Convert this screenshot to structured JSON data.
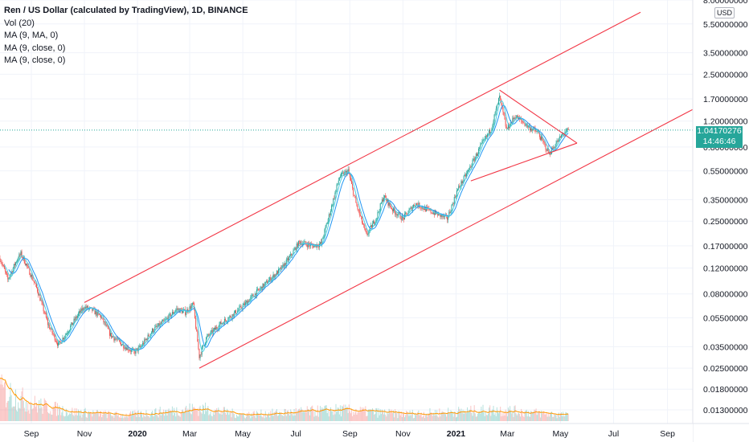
{
  "header": {
    "title": "Ren / US Dollar (calculated by TradingView), 1D, BINANCE",
    "indicators": [
      "Vol (20)",
      "MA (9, MA, 0)",
      "MA (9, close, 0)",
      "MA (9, close, 0)"
    ]
  },
  "price_axis": {
    "currency": "USD",
    "last_price": "1.04170276",
    "countdown": "14:46:46"
  },
  "colors": {
    "up": "#26a69a",
    "down": "#ef5350",
    "ma_blue": "#2196f3",
    "ma_teal": "#4dd0e1",
    "vol_ma": "#ff9800",
    "trendline": "#f23645",
    "last_price_line": "#26a69a"
  },
  "chart_data": {
    "type": "candlestick",
    "scale": "log",
    "ylim": [
      0.0105,
      8.0
    ],
    "xlim": [
      "2019-07-27",
      "2021-09-30"
    ],
    "y_ticks": [
      {
        "value": 8.0,
        "label": "8.00000000"
      },
      {
        "value": 5.5,
        "label": "5.50000000"
      },
      {
        "value": 3.5,
        "label": "3.50000000"
      },
      {
        "value": 2.5,
        "label": "2.50000000"
      },
      {
        "value": 1.7,
        "label": "1.70000000"
      },
      {
        "value": 1.2,
        "label": "1.20000000"
      },
      {
        "value": 0.8,
        "label": "0.80000000"
      },
      {
        "value": 0.55,
        "label": "0.55000000"
      },
      {
        "value": 0.35,
        "label": "0.35000000"
      },
      {
        "value": 0.25,
        "label": "0.25000000"
      },
      {
        "value": 0.17,
        "label": "0.17000000"
      },
      {
        "value": 0.12,
        "label": "0.12000000"
      },
      {
        "value": 0.08,
        "label": "0.08000000"
      },
      {
        "value": 0.055,
        "label": "0.05500000"
      },
      {
        "value": 0.035,
        "label": "0.03500000"
      },
      {
        "value": 0.025,
        "label": "0.02500000"
      },
      {
        "value": 0.018,
        "label": "0.01800000"
      },
      {
        "value": 0.013,
        "label": "0.01300000"
      }
    ],
    "x_ticks": [
      {
        "date": "2019-09-01",
        "label": "Sep",
        "bold": false
      },
      {
        "date": "2019-11-01",
        "label": "Nov",
        "bold": false
      },
      {
        "date": "2020-01-01",
        "label": "2020",
        "bold": true
      },
      {
        "date": "2020-03-01",
        "label": "Mar",
        "bold": false
      },
      {
        "date": "2020-05-01",
        "label": "May",
        "bold": false
      },
      {
        "date": "2020-07-01",
        "label": "Jul",
        "bold": false
      },
      {
        "date": "2020-09-01",
        "label": "Sep",
        "bold": false
      },
      {
        "date": "2020-11-01",
        "label": "Nov",
        "bold": false
      },
      {
        "date": "2021-01-01",
        "label": "2021",
        "bold": true
      },
      {
        "date": "2021-03-01",
        "label": "Mar",
        "bold": false
      },
      {
        "date": "2021-05-01",
        "label": "May",
        "bold": false
      },
      {
        "date": "2021-07-01",
        "label": "Jul",
        "bold": false
      },
      {
        "date": "2021-09-01",
        "label": "Sep",
        "bold": false
      }
    ],
    "price_path": [
      {
        "date": "2019-07-27",
        "close": 0.14
      },
      {
        "date": "2019-08-05",
        "close": 0.1
      },
      {
        "date": "2019-08-15",
        "close": 0.135
      },
      {
        "date": "2019-08-20",
        "close": 0.15
      },
      {
        "date": "2019-08-28",
        "close": 0.12
      },
      {
        "date": "2019-09-08",
        "close": 0.085
      },
      {
        "date": "2019-09-20",
        "close": 0.05
      },
      {
        "date": "2019-10-02",
        "close": 0.036
      },
      {
        "date": "2019-10-12",
        "close": 0.044
      },
      {
        "date": "2019-10-25",
        "close": 0.058
      },
      {
        "date": "2019-11-01",
        "close": 0.065
      },
      {
        "date": "2019-11-10",
        "close": 0.062
      },
      {
        "date": "2019-11-20",
        "close": 0.056
      },
      {
        "date": "2019-12-01",
        "close": 0.042
      },
      {
        "date": "2019-12-15",
        "close": 0.036
      },
      {
        "date": "2019-12-28",
        "close": 0.032
      },
      {
        "date": "2020-01-05",
        "close": 0.035
      },
      {
        "date": "2020-01-18",
        "close": 0.045
      },
      {
        "date": "2020-02-01",
        "close": 0.052
      },
      {
        "date": "2020-02-15",
        "close": 0.063
      },
      {
        "date": "2020-02-25",
        "close": 0.06
      },
      {
        "date": "2020-03-05",
        "close": 0.068
      },
      {
        "date": "2020-03-12",
        "close": 0.03
      },
      {
        "date": "2020-03-20",
        "close": 0.04
      },
      {
        "date": "2020-04-05",
        "close": 0.05
      },
      {
        "date": "2020-04-20",
        "close": 0.058
      },
      {
        "date": "2020-05-01",
        "close": 0.066
      },
      {
        "date": "2020-05-15",
        "close": 0.08
      },
      {
        "date": "2020-06-01",
        "close": 0.1
      },
      {
        "date": "2020-06-15",
        "close": 0.12
      },
      {
        "date": "2020-06-25",
        "close": 0.145
      },
      {
        "date": "2020-07-05",
        "close": 0.18
      },
      {
        "date": "2020-07-20",
        "close": 0.17
      },
      {
        "date": "2020-07-30",
        "close": 0.175
      },
      {
        "date": "2020-08-10",
        "close": 0.3
      },
      {
        "date": "2020-08-20",
        "close": 0.5
      },
      {
        "date": "2020-08-30",
        "close": 0.55
      },
      {
        "date": "2020-09-08",
        "close": 0.33
      },
      {
        "date": "2020-09-20",
        "close": 0.2
      },
      {
        "date": "2020-10-01",
        "close": 0.26
      },
      {
        "date": "2020-10-10",
        "close": 0.37
      },
      {
        "date": "2020-10-20",
        "close": 0.3
      },
      {
        "date": "2020-11-01",
        "close": 0.26
      },
      {
        "date": "2020-11-15",
        "close": 0.33
      },
      {
        "date": "2020-11-28",
        "close": 0.3
      },
      {
        "date": "2020-12-10",
        "close": 0.28
      },
      {
        "date": "2020-12-22",
        "close": 0.26
      },
      {
        "date": "2021-01-02",
        "close": 0.4
      },
      {
        "date": "2021-01-15",
        "close": 0.55
      },
      {
        "date": "2021-01-30",
        "close": 0.82
      },
      {
        "date": "2021-02-10",
        "close": 1.05
      },
      {
        "date": "2021-02-20",
        "close": 1.75
      },
      {
        "date": "2021-02-28",
        "close": 1.05
      },
      {
        "date": "2021-03-10",
        "close": 1.3
      },
      {
        "date": "2021-03-25",
        "close": 1.1
      },
      {
        "date": "2021-04-05",
        "close": 1.0
      },
      {
        "date": "2021-04-18",
        "close": 0.72
      },
      {
        "date": "2021-04-28",
        "close": 0.88
      },
      {
        "date": "2021-05-05",
        "close": 1.0
      },
      {
        "date": "2021-05-10",
        "close": 1.04
      }
    ],
    "moving_averages": [
      {
        "name": "MA (9, MA, 0)",
        "color": "#2196f3",
        "lag_days": 10
      },
      {
        "name": "MA (9, close, 0)",
        "color": "#4dd0e1",
        "lag_days": 5
      }
    ],
    "volume": {
      "ma_name": "Vol (20)",
      "relative_levels": [
        {
          "date": "2019-07-27",
          "level": 1.0
        },
        {
          "date": "2019-09-01",
          "level": 0.55
        },
        {
          "date": "2019-10-15",
          "level": 0.3
        },
        {
          "date": "2019-12-15",
          "level": 0.18
        },
        {
          "date": "2020-03-12",
          "level": 0.4
        },
        {
          "date": "2020-05-01",
          "level": 0.2
        },
        {
          "date": "2020-08-20",
          "level": 0.35
        },
        {
          "date": "2020-11-01",
          "level": 0.22
        },
        {
          "date": "2021-02-20",
          "level": 0.35
        },
        {
          "date": "2021-05-10",
          "level": 0.18
        }
      ]
    },
    "drawings": [
      {
        "name": "channel-upper",
        "from": {
          "date": "2019-11-01",
          "price": 0.07
        },
        "to": {
          "date": "2021-08-01",
          "price": 6.6
        }
      },
      {
        "name": "channel-lower",
        "from": {
          "date": "2020-03-12",
          "price": 0.025
        },
        "to": {
          "date": "2021-10-01",
          "price": 1.45
        }
      },
      {
        "name": "triangle-top",
        "from": {
          "date": "2021-02-20",
          "price": 1.95
        },
        "to": {
          "date": "2021-05-20",
          "price": 0.85
        }
      },
      {
        "name": "triangle-bottom",
        "from": {
          "date": "2021-01-18",
          "price": 0.47
        },
        "to": {
          "date": "2021-05-20",
          "price": 0.85
        }
      }
    ]
  }
}
